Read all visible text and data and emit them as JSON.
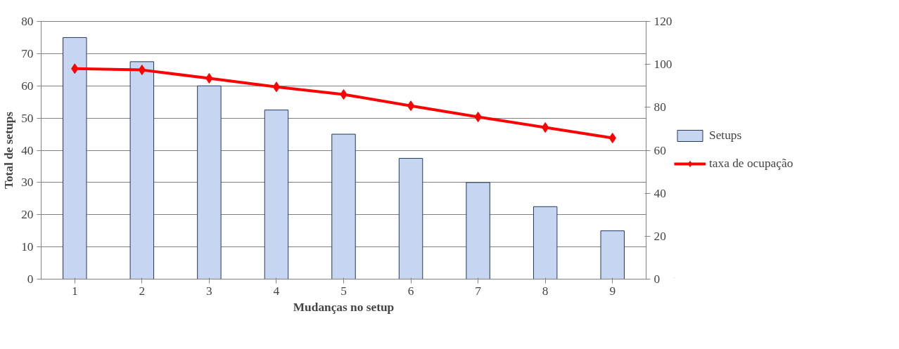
{
  "chart_data": {
    "type": "bar",
    "xlabel": "Mudanças no setup",
    "ylabel": "Total de setups",
    "categories": [
      "1",
      "2",
      "3",
      "4",
      "5",
      "6",
      "7",
      "8",
      "9"
    ],
    "series": [
      {
        "name": "Setups",
        "color": "#c6d5f0",
        "values": [
          75,
          67.5,
          60,
          52.5,
          45,
          37.5,
          30,
          22.5,
          15
        ]
      },
      {
        "name": "taxa de ocupação",
        "type": "line",
        "axis": "y2",
        "color": "#ff0000",
        "marker": "diamond",
        "values": [
          98,
          97.4,
          93.5,
          89.5,
          86,
          80.7,
          75.5,
          70.6,
          65.7
        ]
      }
    ],
    "ylim": [
      0,
      80
    ],
    "yticks": [
      0,
      10,
      20,
      30,
      40,
      50,
      60,
      70,
      80
    ],
    "y2lim": [
      0,
      120
    ],
    "y2ticks": [
      0,
      20,
      40,
      60,
      80,
      100,
      120
    ],
    "grid": "y",
    "legend": "right"
  }
}
